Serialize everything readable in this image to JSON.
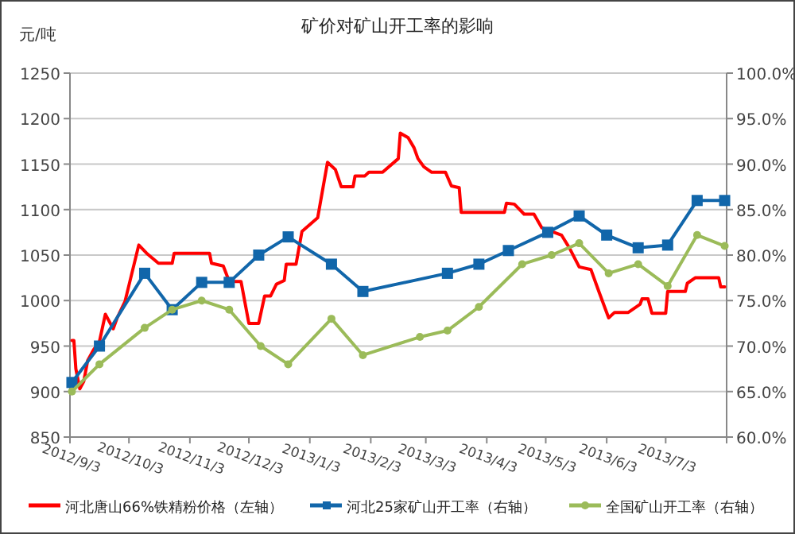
{
  "chart_data": {
    "type": "line",
    "title": "矿价对矿山开工率的影响",
    "ylabel": "元/吨",
    "xlim": [
      "2012-09-03",
      "2013-08-03"
    ],
    "xticks": [
      {
        "value": "2012-09-03",
        "label": "2012/9/3"
      },
      {
        "value": "2012-10-03",
        "label": "2012/10/3"
      },
      {
        "value": "2012-11-03",
        "label": "2012/11/3"
      },
      {
        "value": "2012-12-03",
        "label": "2012/12/3"
      },
      {
        "value": "2013-01-03",
        "label": "2013/1/3"
      },
      {
        "value": "2013-02-03",
        "label": "2013/2/3"
      },
      {
        "value": "2013-03-03",
        "label": "2013/3/3"
      },
      {
        "value": "2013-04-03",
        "label": "2013/4/3"
      },
      {
        "value": "2013-05-03",
        "label": "2013/5/3"
      },
      {
        "value": "2013-06-03",
        "label": "2013/6/3"
      },
      {
        "value": "2013-07-03",
        "label": "2013/7/3"
      },
      {
        "value": "2013-08-03",
        "label": null
      }
    ],
    "ylim": [
      850,
      1250
    ],
    "yticks": [
      850,
      900,
      950,
      1000,
      1050,
      1100,
      1150,
      1200,
      1250
    ],
    "y2lim": [
      60,
      100
    ],
    "y2ticks": [
      {
        "value": 60,
        "label": "60.0%"
      },
      {
        "value": 65,
        "label": "65.0%"
      },
      {
        "value": 70,
        "label": "70.0%"
      },
      {
        "value": 75,
        "label": "75.0%"
      },
      {
        "value": 80,
        "label": "80.0%"
      },
      {
        "value": 85,
        "label": "85.0%"
      },
      {
        "value": 90,
        "label": "90.0%"
      },
      {
        "value": 95,
        "label": "95.0%"
      },
      {
        "value": 100,
        "label": "100.0%"
      }
    ],
    "grid": "y",
    "legend": "bottom",
    "series": [
      {
        "name": "河北唐山66%铁精粉价格（左轴）",
        "color": "#ff0000",
        "marker": "none",
        "x": [
          "2012-09-04",
          "2012-09-05",
          "2012-09-06",
          "2012-09-08",
          "2012-09-10",
          "2012-09-12",
          "2012-09-15",
          "2012-09-18",
          "2012-09-21",
          "2012-09-25",
          "2012-09-27",
          "2012-10-01",
          "2012-10-08",
          "2012-10-12",
          "2012-10-18",
          "2012-10-25",
          "2012-10-26",
          "2012-11-13",
          "2012-11-14",
          "2012-11-20",
          "2012-11-23",
          "2012-11-29",
          "2012-12-03",
          "2012-12-08",
          "2012-12-11",
          "2012-12-14",
          "2012-12-17",
          "2012-12-21",
          "2012-12-22",
          "2012-12-27",
          "2012-12-30",
          "2013-01-07",
          "2013-01-12",
          "2013-01-16",
          "2013-01-19",
          "2013-01-25",
          "2013-01-26",
          "2013-01-31",
          "2013-02-02",
          "2013-02-09",
          "2013-02-17",
          "2013-02-18",
          "2013-02-22",
          "2013-02-25",
          "2013-02-27",
          "2013-03-02",
          "2013-03-06",
          "2013-03-13",
          "2013-03-16",
          "2013-03-20",
          "2013-03-21",
          "2013-04-12",
          "2013-04-13",
          "2013-04-17",
          "2013-04-22",
          "2013-04-27",
          "2013-05-01",
          "2013-05-11",
          "2013-05-15",
          "2013-05-20",
          "2013-05-26",
          "2013-05-30",
          "2013-06-04",
          "2013-06-07",
          "2013-06-14",
          "2013-06-20",
          "2013-06-21",
          "2013-06-24",
          "2013-06-26",
          "2013-07-03",
          "2013-07-04",
          "2013-07-13",
          "2013-07-14",
          "2013-07-18",
          "2013-07-30",
          "2013-07-31",
          "2013-08-02"
        ],
        "values": [
          956,
          956,
          925,
          903,
          911,
          934,
          946,
          955,
          985,
          969,
          981,
          999,
          1061,
          1052,
          1041,
          1041,
          1052,
          1052,
          1041,
          1038,
          1021,
          1021,
          975,
          975,
          1005,
          1005,
          1018,
          1022,
          1040,
          1040,
          1076,
          1091,
          1152,
          1144,
          1125,
          1125,
          1137,
          1137,
          1141,
          1141,
          1156,
          1184,
          1179,
          1168,
          1156,
          1147,
          1141,
          1141,
          1126,
          1124,
          1097,
          1097,
          1107,
          1106,
          1095,
          1095,
          1080,
          1072,
          1058,
          1037,
          1034,
          1010,
          981,
          987,
          987,
          996,
          1002,
          1002,
          986,
          986,
          1010,
          1010,
          1019,
          1025,
          1025,
          1015,
          1015
        ]
      },
      {
        "name": "河北25家矿山开工率（右轴）",
        "color": "#1166aa",
        "marker": "square",
        "axis": "y2",
        "x": [
          "2012-09-04",
          "2012-09-18",
          "2012-10-11",
          "2012-10-25",
          "2012-11-09",
          "2012-11-23",
          "2012-12-08",
          "2012-12-23",
          "2013-01-14",
          "2013-01-30",
          "2013-03-14",
          "2013-03-30",
          "2013-04-14",
          "2013-05-04",
          "2013-05-20",
          "2013-06-03",
          "2013-06-19",
          "2013-07-04",
          "2013-07-19",
          "2013-08-02"
        ],
        "values": [
          66.0,
          70.0,
          78.0,
          74.0,
          77.0,
          77.0,
          80.0,
          82.0,
          79.0,
          76.0,
          78.0,
          79.0,
          80.5,
          82.5,
          84.3,
          82.2,
          80.8,
          81.1,
          86.0,
          86.0
        ]
      },
      {
        "name": "全国矿山开工率（右轴）",
        "color": "#9bbb59",
        "marker": "circle",
        "axis": "y2",
        "x": [
          "2012-09-04",
          "2012-09-18",
          "2012-10-11",
          "2012-10-25",
          "2012-11-09",
          "2012-11-23",
          "2012-12-09",
          "2012-12-23",
          "2013-01-14",
          "2013-01-30",
          "2013-02-28",
          "2013-03-14",
          "2013-03-30",
          "2013-04-21",
          "2013-05-06",
          "2013-05-20",
          "2013-06-04",
          "2013-06-19",
          "2013-07-04",
          "2013-07-19",
          "2013-08-02"
        ],
        "values": [
          65.0,
          68.0,
          72.0,
          74.0,
          75.0,
          74.0,
          70.0,
          68.0,
          73.0,
          69.0,
          71.0,
          71.7,
          74.3,
          79.0,
          80.0,
          81.3,
          78.0,
          79.0,
          76.6,
          82.2,
          81.0
        ]
      }
    ]
  }
}
